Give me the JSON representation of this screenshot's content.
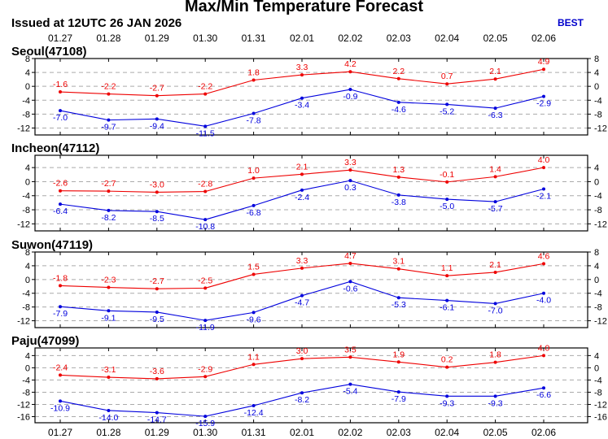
{
  "header": {
    "title": "Max/Min Temperature Forecast",
    "issued": "Issued at 12UTC 26 JAN 2026",
    "model": "BEST"
  },
  "colors": {
    "max": "#ee0000",
    "min": "#0000dd",
    "grid": "#aaaaaa"
  },
  "chart_data": [
    {
      "type": "line",
      "title": "Seoul(47108)",
      "categories": [
        "01.27",
        "01.28",
        "01.29",
        "01.30",
        "01.31",
        "02.01",
        "02.02",
        "02.03",
        "02.04",
        "02.05",
        "02.06"
      ],
      "series": [
        {
          "values": [
            -1.6,
            -2.2,
            -2.7,
            -2.2,
            1.8,
            3.3,
            4.2,
            2.2,
            0.7,
            2.1,
            4.9
          ]
        },
        {
          "values": [
            -7.0,
            -9.7,
            -9.4,
            -11.5,
            -7.8,
            -3.4,
            -0.9,
            -4.6,
            -5.2,
            -6.3,
            -2.9
          ]
        }
      ],
      "ylim": [
        -14,
        8
      ],
      "yticks": [
        8,
        4,
        0,
        -4,
        -8,
        -12
      ],
      "grid": true
    },
    {
      "type": "line",
      "title": "Incheon(47112)",
      "categories": [
        "01.27",
        "01.28",
        "01.29",
        "01.30",
        "01.31",
        "02.01",
        "02.02",
        "02.03",
        "02.04",
        "02.05",
        "02.06"
      ],
      "series": [
        {
          "values": [
            -2.6,
            -2.7,
            -3.0,
            -2.8,
            1.0,
            2.1,
            3.3,
            1.3,
            -0.1,
            1.4,
            4.0
          ]
        },
        {
          "values": [
            -6.4,
            -8.2,
            -8.5,
            -10.8,
            -6.8,
            -2.4,
            0.3,
            -3.8,
            -5.0,
            -5.7,
            -2.1
          ]
        }
      ],
      "ylim": [
        -14,
        7.5
      ],
      "yticks": [
        4,
        0,
        -4,
        -8,
        -12
      ],
      "grid": true
    },
    {
      "type": "line",
      "title": "Suwon(47119)",
      "categories": [
        "01.27",
        "01.28",
        "01.29",
        "01.30",
        "01.31",
        "02.01",
        "02.02",
        "02.03",
        "02.04",
        "02.05",
        "02.06"
      ],
      "series": [
        {
          "values": [
            -1.8,
            -2.3,
            -2.7,
            -2.5,
            1.5,
            3.3,
            4.7,
            3.1,
            1.1,
            2.1,
            4.6
          ]
        },
        {
          "values": [
            -7.9,
            -9.1,
            -9.5,
            -11.9,
            -9.6,
            -4.7,
            -0.6,
            -5.3,
            -6.1,
            -7.0,
            -4.0
          ]
        }
      ],
      "ylim": [
        -14,
        8
      ],
      "yticks": [
        8,
        4,
        0,
        -4,
        -8,
        -12
      ],
      "grid": true
    },
    {
      "type": "line",
      "title": "Paju(47099)",
      "categories": [
        "01.27",
        "01.28",
        "01.29",
        "01.30",
        "01.31",
        "02.01",
        "02.02",
        "02.03",
        "02.04",
        "02.05",
        "02.06"
      ],
      "series": [
        {
          "values": [
            -2.4,
            -3.1,
            -3.6,
            -2.9,
            1.1,
            3.0,
            3.5,
            1.9,
            0.2,
            1.8,
            4.0
          ]
        },
        {
          "values": [
            -10.9,
            -14.0,
            -14.7,
            -15.9,
            -12.4,
            -8.2,
            -5.4,
            -7.9,
            -9.3,
            -9.3,
            -6.6
          ]
        }
      ],
      "ylim": [
        -18,
        6.5
      ],
      "yticks": [
        4,
        0,
        -4,
        -8,
        -12,
        -16
      ],
      "grid": true
    }
  ]
}
